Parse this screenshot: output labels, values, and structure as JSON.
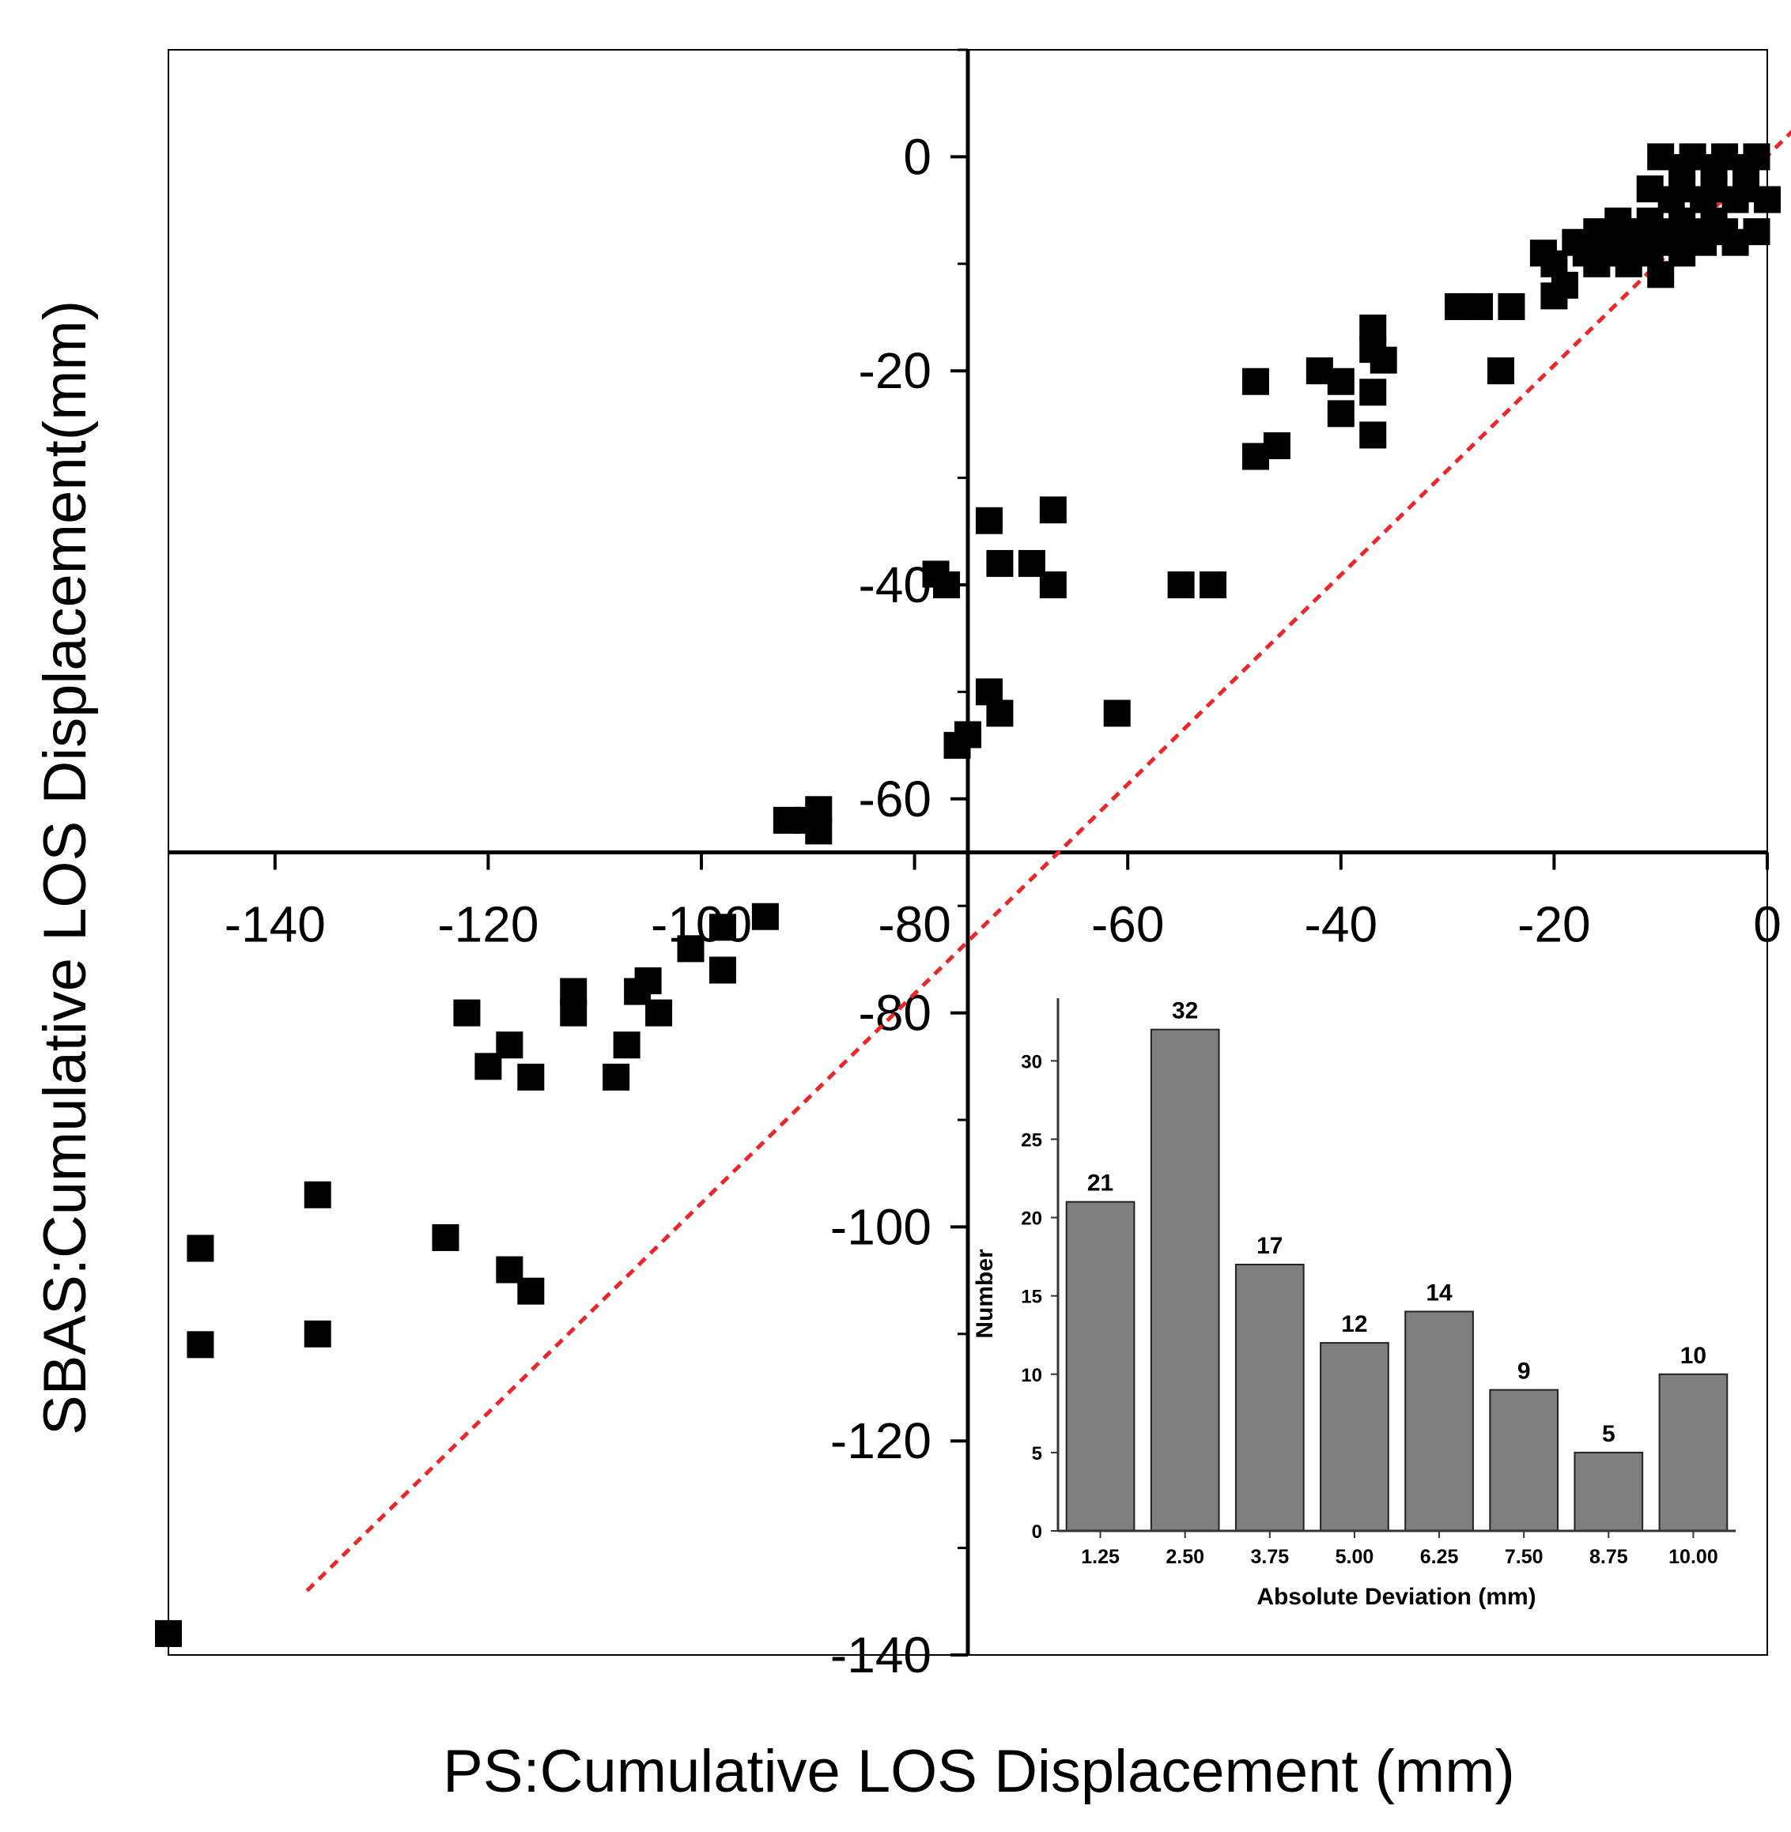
{
  "chart_data": [
    {
      "type": "scatter",
      "xlabel": "PS:Cumulative LOS Displacement (mm)",
      "ylabel": "SBAS:Cumulative LOS Displacement(mm)",
      "xlim": [
        -150,
        0
      ],
      "ylim": [
        -140,
        10
      ],
      "x_ticks": [
        -140,
        -120,
        -100,
        -80,
        -60,
        -40,
        -20,
        0
      ],
      "y_ticks": [
        0,
        -20,
        -40,
        -60,
        -80,
        -100,
        -120,
        -140
      ],
      "axes_cross_at": {
        "x": -75,
        "y": -65
      },
      "reference_line": {
        "style": "dashed",
        "color": "#e8282b",
        "x": [
          -137,
          4
        ],
        "y": [
          -134,
          4
        ]
      },
      "marker": "square",
      "marker_color": "#000000",
      "points": [
        [
          -10,
          0
        ],
        [
          -7,
          0
        ],
        [
          -4,
          0
        ],
        [
          -1,
          0
        ],
        [
          -8,
          -1
        ],
        [
          -5,
          -1
        ],
        [
          -2,
          -1
        ],
        [
          -11,
          -3
        ],
        [
          -8,
          -3
        ],
        [
          -5,
          -3
        ],
        [
          -2,
          -3
        ],
        [
          -9,
          -4
        ],
        [
          -6,
          -4
        ],
        [
          -3,
          -4
        ],
        [
          0,
          -4
        ],
        [
          -14,
          -6
        ],
        [
          -11,
          -6
        ],
        [
          -8,
          -6
        ],
        [
          -5,
          -6
        ],
        [
          -16,
          -7
        ],
        [
          -13,
          -7
        ],
        [
          -10,
          -7
        ],
        [
          -7,
          -7
        ],
        [
          -4,
          -7
        ],
        [
          -1,
          -7
        ],
        [
          -18,
          -8
        ],
        [
          -15,
          -8
        ],
        [
          -12,
          -8
        ],
        [
          -9,
          -8
        ],
        [
          -6,
          -8
        ],
        [
          -3,
          -8
        ],
        [
          -21,
          -9
        ],
        [
          -17,
          -9
        ],
        [
          -14,
          -9
        ],
        [
          -11,
          -9
        ],
        [
          -8,
          -9
        ],
        [
          -20,
          -10
        ],
        [
          -16,
          -10
        ],
        [
          -13,
          -10
        ],
        [
          -10,
          -11
        ],
        [
          -19,
          -12
        ],
        [
          -20,
          -13
        ],
        [
          -29,
          -14
        ],
        [
          -27,
          -14
        ],
        [
          -24,
          -14
        ],
        [
          -37,
          -16
        ],
        [
          -37,
          -18
        ],
        [
          -36,
          -19
        ],
        [
          -25,
          -20
        ],
        [
          -42,
          -20
        ],
        [
          -40,
          -21
        ],
        [
          -48,
          -21
        ],
        [
          -37,
          -22
        ],
        [
          -40,
          -24
        ],
        [
          -37,
          -26
        ],
        [
          -46,
          -27
        ],
        [
          -48,
          -28
        ],
        [
          -67,
          -33
        ],
        [
          -73,
          -34
        ],
        [
          -72,
          -38
        ],
        [
          -69,
          -38
        ],
        [
          -67,
          -40
        ],
        [
          -78,
          -39
        ],
        [
          -77,
          -40
        ],
        [
          -55,
          -40
        ],
        [
          -52,
          -40
        ],
        [
          -73,
          -50
        ],
        [
          -72,
          -52
        ],
        [
          -61,
          -52
        ],
        [
          -75,
          -54
        ],
        [
          -76,
          -55
        ],
        [
          -89,
          -61
        ],
        [
          -90,
          -62
        ],
        [
          -92,
          -62
        ],
        [
          -89,
          -63
        ],
        [
          -94,
          -71
        ],
        [
          -98,
          -72
        ],
        [
          -101,
          -74
        ],
        [
          -98,
          -76
        ],
        [
          -105,
          -77
        ],
        [
          -106,
          -78
        ],
        [
          -112,
          -78
        ],
        [
          -104,
          -80
        ],
        [
          -112,
          -80
        ],
        [
          -122,
          -80
        ],
        [
          -118,
          -83
        ],
        [
          -107,
          -83
        ],
        [
          -120,
          -85
        ],
        [
          -116,
          -86
        ],
        [
          -108,
          -86
        ],
        [
          -136,
          -97
        ],
        [
          -124,
          -101
        ],
        [
          -147,
          -102
        ],
        [
          -118,
          -104
        ],
        [
          -116,
          -106
        ],
        [
          -147,
          -111
        ],
        [
          -136,
          -110
        ],
        [
          -150,
          -138
        ]
      ]
    },
    {
      "type": "bar",
      "categories": [
        "1.25",
        "2.50",
        "3.75",
        "5.00",
        "6.25",
        "7.50",
        "8.75",
        "10.00"
      ],
      "values": [
        21,
        32,
        17,
        12,
        14,
        9,
        5,
        10
      ],
      "xlabel": "Absolute Deviation (mm)",
      "ylabel": "Number",
      "ylim": [
        0,
        34
      ],
      "y_ticks": [
        0,
        5,
        10,
        15,
        20,
        25,
        30
      ],
      "data_labels": [
        "21",
        "32",
        "17",
        "12",
        "14",
        "9",
        "5",
        "10"
      ],
      "bar_color": "#7f7f7f"
    }
  ]
}
